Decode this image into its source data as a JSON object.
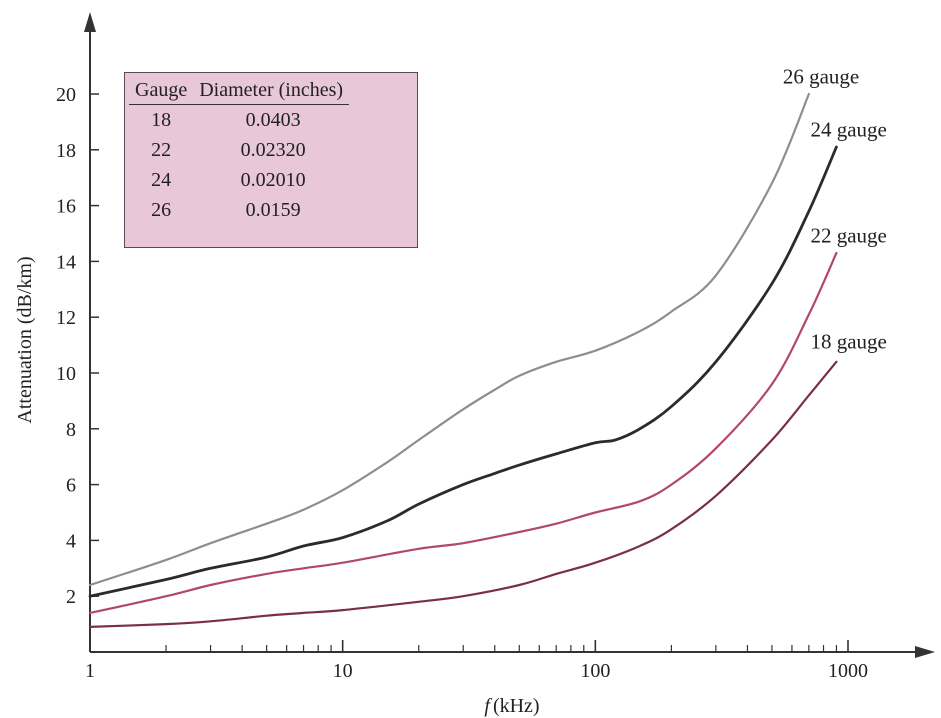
{
  "chart_data": {
    "type": "line",
    "title": "",
    "xlabel": "f (kHz)",
    "xlabel_italic_part": "f",
    "xlabel_rest": "(kHz)",
    "ylabel": "Attenuation (dB/km)",
    "x_scale": "log",
    "xlim": [
      1,
      1000
    ],
    "ylim": [
      0,
      22
    ],
    "x_ticks": [
      1,
      10,
      100,
      1000
    ],
    "y_ticks": [
      2,
      4,
      6,
      8,
      10,
      12,
      14,
      16,
      18,
      20
    ],
    "grid": false,
    "series": [
      {
        "name": "26 gauge",
        "color": "#8e8e8e",
        "x": [
          1,
          2,
          3,
          5,
          7,
          10,
          15,
          20,
          30,
          40,
          50,
          70,
          100,
          150,
          200,
          300,
          500,
          700
        ],
        "y": [
          2.4,
          3.3,
          3.9,
          4.6,
          5.1,
          5.8,
          6.8,
          7.6,
          8.7,
          9.4,
          9.9,
          10.4,
          10.8,
          11.5,
          12.2,
          13.5,
          16.8,
          20.0
        ]
      },
      {
        "name": "24 gauge",
        "color": "#2b2b2b",
        "x": [
          1,
          2,
          3,
          5,
          7,
          10,
          15,
          20,
          30,
          40,
          50,
          70,
          100,
          120,
          150,
          200,
          300,
          500,
          700,
          900
        ],
        "y": [
          2.0,
          2.6,
          3.0,
          3.4,
          3.8,
          4.1,
          4.7,
          5.3,
          6.0,
          6.4,
          6.7,
          7.1,
          7.5,
          7.6,
          8.0,
          8.8,
          10.4,
          13.2,
          15.8,
          18.1
        ]
      },
      {
        "name": "22 gauge",
        "color": "#b0486a",
        "x": [
          1,
          2,
          3,
          5,
          7,
          10,
          20,
          30,
          50,
          70,
          100,
          150,
          200,
          300,
          500,
          700,
          900
        ],
        "y": [
          1.4,
          2.0,
          2.4,
          2.8,
          3.0,
          3.2,
          3.7,
          3.9,
          4.3,
          4.6,
          5.0,
          5.4,
          6.0,
          7.3,
          9.6,
          12.1,
          14.3
        ]
      },
      {
        "name": "18 gauge",
        "color": "#7a2d4e",
        "x": [
          1,
          2,
          3,
          5,
          7,
          10,
          20,
          30,
          50,
          70,
          100,
          150,
          200,
          300,
          500,
          700,
          900
        ],
        "y": [
          0.9,
          1.0,
          1.1,
          1.3,
          1.4,
          1.5,
          1.8,
          2.0,
          2.4,
          2.8,
          3.2,
          3.8,
          4.4,
          5.6,
          7.6,
          9.2,
          10.4
        ]
      }
    ],
    "annotations": [
      {
        "text": "26 gauge",
        "x": 700,
        "y": 20.6
      },
      {
        "text": "24 gauge",
        "x": 900,
        "y": 18.7
      },
      {
        "text": "22 gauge",
        "x": 900,
        "y": 14.9
      },
      {
        "text": "18 gauge",
        "x": 900,
        "y": 11.1
      }
    ]
  },
  "legend_table": {
    "headers": [
      "Gauge",
      "Diameter (inches)"
    ],
    "rows": [
      [
        "18",
        "0.0403"
      ],
      [
        "22",
        "0.02320"
      ],
      [
        "24",
        "0.02010"
      ],
      [
        "26",
        "0.0159"
      ]
    ],
    "background": "#e7c7d8",
    "placement": "top-left"
  }
}
